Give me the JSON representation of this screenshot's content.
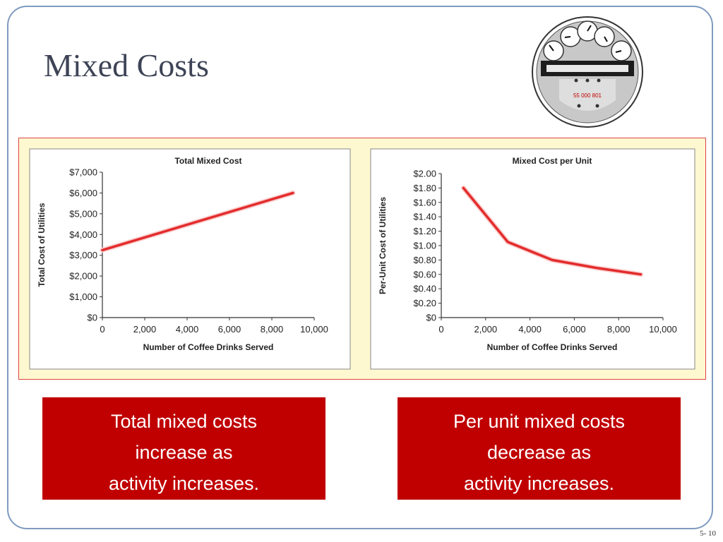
{
  "slide": {
    "title": "Mixed Costs",
    "page_number": "5- 10",
    "meter_label": "55 000 801"
  },
  "callouts": {
    "left": [
      "Total mixed costs",
      "increase as",
      "activity increases."
    ],
    "right": [
      "Per unit mixed costs",
      "decrease as",
      "activity increases."
    ]
  },
  "colors": {
    "line": "#e32c2c",
    "callout_bg": "#c00000",
    "panel_bg": "#fdf8cf",
    "frame": "#7f9bbf"
  },
  "chart_data": [
    {
      "type": "line",
      "title": "Total Mixed Cost",
      "xlabel": "Number of Coffee Drinks Served",
      "ylabel": "Total Cost of Utilities",
      "xlim": [
        0,
        10000
      ],
      "ylim": [
        0,
        7000
      ],
      "xticks": [
        0,
        2000,
        4000,
        6000,
        8000,
        10000
      ],
      "xtick_labels": [
        "0",
        "2,000",
        "4,000",
        "6,000",
        "8,000",
        "10,000"
      ],
      "yticks": [
        0,
        1000,
        2000,
        3000,
        4000,
        5000,
        6000,
        7000
      ],
      "ytick_labels": [
        "$0",
        "$1,000",
        "$2,000",
        "$3,000",
        "$4,000",
        "$5,000",
        "$6,000",
        "$7,000"
      ],
      "series": [
        {
          "x": [
            0,
            9000
          ],
          "y": [
            3250,
            6000
          ]
        }
      ]
    },
    {
      "type": "line",
      "title": "Mixed Cost per Unit",
      "xlabel": "Number of Coffee Drinks Served",
      "ylabel": "Per-Unit Cost of Utilities",
      "xlim": [
        0,
        10000
      ],
      "ylim": [
        0,
        2.0
      ],
      "xticks": [
        0,
        2000,
        4000,
        6000,
        8000,
        10000
      ],
      "xtick_labels": [
        "0",
        "2,000",
        "4,000",
        "6,000",
        "8,000",
        "10,000"
      ],
      "yticks": [
        0,
        0.2,
        0.4,
        0.6,
        0.8,
        1.0,
        1.2,
        1.4,
        1.6,
        1.8,
        2.0
      ],
      "ytick_labels": [
        "$0",
        "$0.20",
        "$0.40",
        "$0.60",
        "$0.80",
        "$1.00",
        "$1.20",
        "$1.40",
        "$1.60",
        "$1.80",
        "$2.00"
      ],
      "series": [
        {
          "x": [
            1000,
            3000,
            5000,
            7000,
            9000
          ],
          "y": [
            1.8,
            1.05,
            0.8,
            0.69,
            0.6
          ]
        }
      ]
    }
  ]
}
